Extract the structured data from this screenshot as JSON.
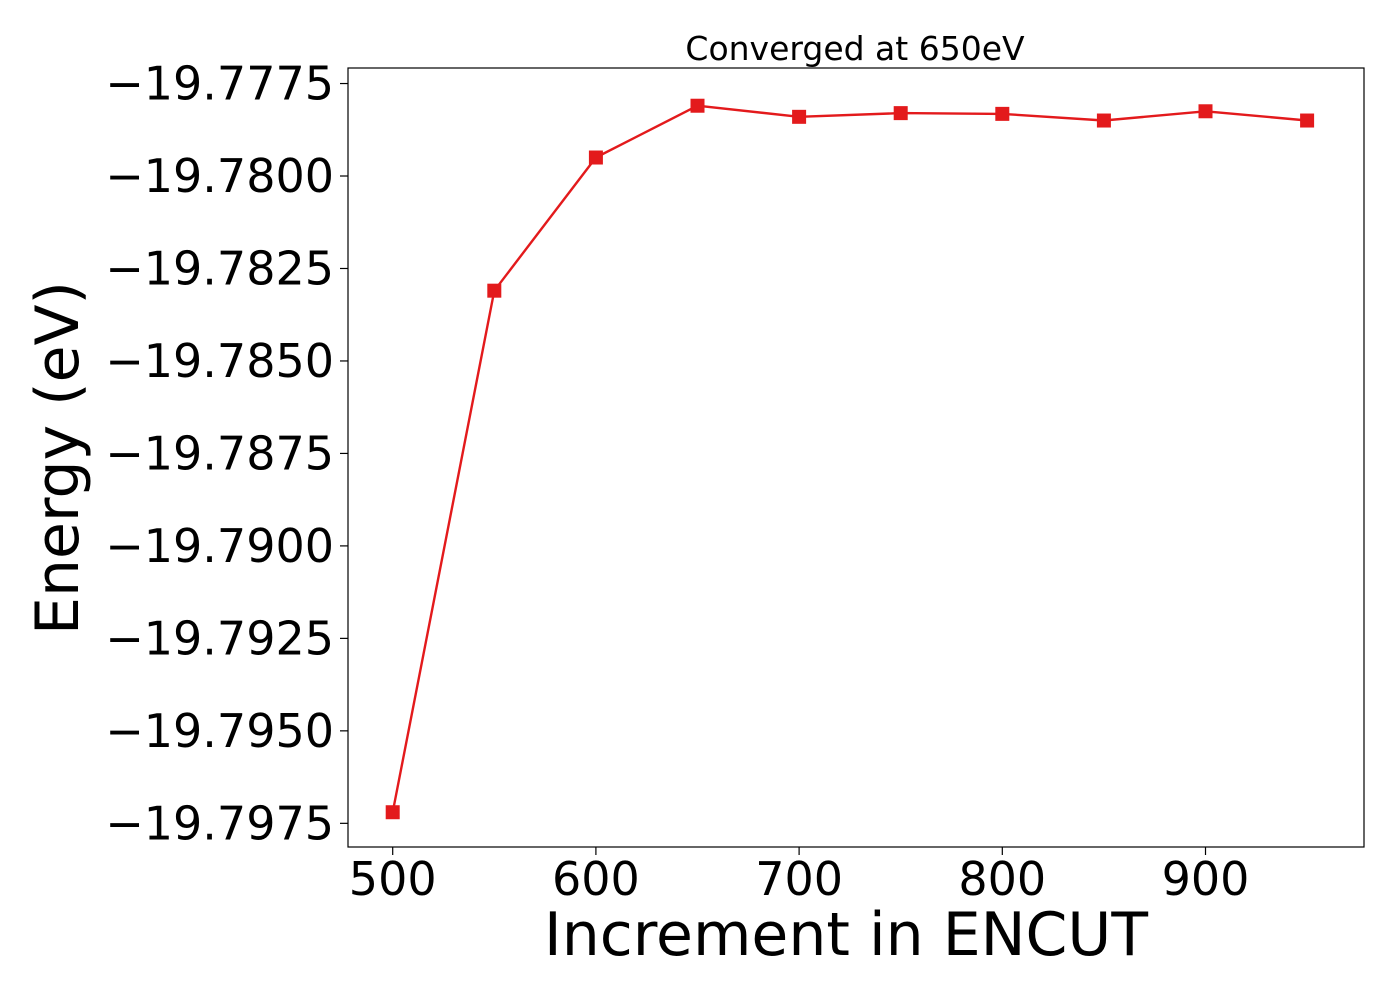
{
  "chart_data": {
    "type": "line",
    "title": "Converged at 650eV",
    "xlabel": "Increment in ENCUT",
    "ylabel": "Energy (eV)",
    "x": [
      500,
      550,
      600,
      650,
      700,
      750,
      800,
      850,
      900,
      950
    ],
    "series": [
      {
        "name": "",
        "values": [
          -19.7972,
          -19.7831,
          -19.7795,
          -19.7781,
          -19.7784,
          -19.7783,
          -19.77832,
          -19.7785,
          -19.77825,
          -19.7785
        ],
        "color": "#e31a1c",
        "marker": "square"
      }
    ],
    "xlim": [
      478,
      978
    ],
    "ylim": [
      -19.79814,
      -19.77708
    ],
    "xticks": [
      500,
      600,
      700,
      800,
      900
    ],
    "xtick_labels": [
      "500",
      "600",
      "700",
      "800",
      "900"
    ],
    "yticks": [
      -19.7975,
      -19.795,
      -19.7925,
      -19.79,
      -19.7875,
      -19.785,
      -19.7825,
      -19.78,
      -19.7775
    ],
    "ytick_labels": [
      "−19.7975",
      "−19.7950",
      "−19.7925",
      "−19.7900",
      "−19.7875",
      "−19.7850",
      "−19.7825",
      "−19.7800",
      "−19.7775"
    ],
    "grid": false,
    "legend": "none"
  }
}
